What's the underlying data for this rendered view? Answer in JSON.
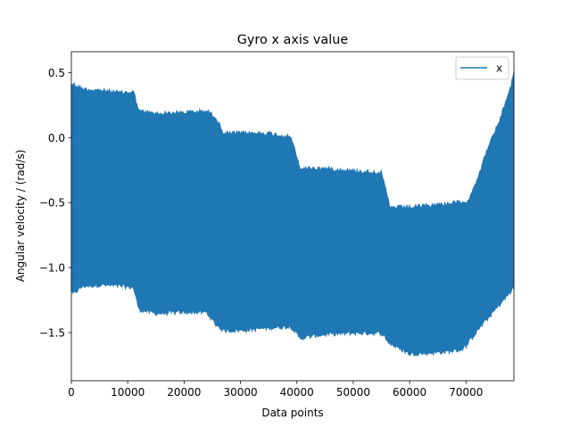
{
  "chart_data": {
    "type": "line",
    "title": "Gyro x axis value",
    "xlabel": "Data points",
    "ylabel": "Angular velocity / (rad/s)",
    "xlim": [
      0,
      78500
    ],
    "ylim": [
      -1.87,
      0.66
    ],
    "xticks": [
      0,
      10000,
      20000,
      30000,
      40000,
      50000,
      60000,
      70000
    ],
    "xtick_labels": [
      "0",
      "10000",
      "20000",
      "30000",
      "40000",
      "50000",
      "60000",
      "70000"
    ],
    "yticks": [
      0.5,
      0.0,
      -0.5,
      -1.0,
      -1.5
    ],
    "ytick_labels": [
      "0.5",
      "0.0",
      "−0.5",
      "−1.0",
      "−1.5"
    ],
    "legend": {
      "position": "top-right",
      "entries": [
        "x"
      ]
    },
    "series": [
      {
        "name": "x",
        "color": "#1f77b4",
        "envelope_x": [
          0,
          300,
          2000,
          5000,
          9000,
          11000,
          12000,
          15000,
          20000,
          24000,
          25500,
          27000,
          30000,
          35000,
          39000,
          40500,
          45000,
          50000,
          55000,
          56500,
          60000,
          65000,
          69000,
          70000,
          72000,
          74000,
          76000,
          78000,
          78500
        ],
        "upper": [
          0.43,
          0.43,
          0.39,
          0.38,
          0.36,
          0.37,
          0.22,
          0.2,
          0.21,
          0.22,
          0.18,
          0.05,
          0.05,
          0.05,
          0.02,
          -0.22,
          -0.22,
          -0.24,
          -0.25,
          -0.52,
          -0.52,
          -0.5,
          -0.48,
          -0.5,
          -0.3,
          -0.05,
          0.15,
          0.42,
          0.52
        ],
        "lower": [
          -1.2,
          -1.22,
          -1.16,
          -1.15,
          -1.16,
          -1.17,
          -1.34,
          -1.37,
          -1.36,
          -1.36,
          -1.45,
          -1.5,
          -1.5,
          -1.48,
          -1.47,
          -1.56,
          -1.53,
          -1.52,
          -1.52,
          -1.6,
          -1.68,
          -1.67,
          -1.65,
          -1.62,
          -1.5,
          -1.4,
          -1.3,
          -1.2,
          -1.15
        ]
      }
    ]
  }
}
